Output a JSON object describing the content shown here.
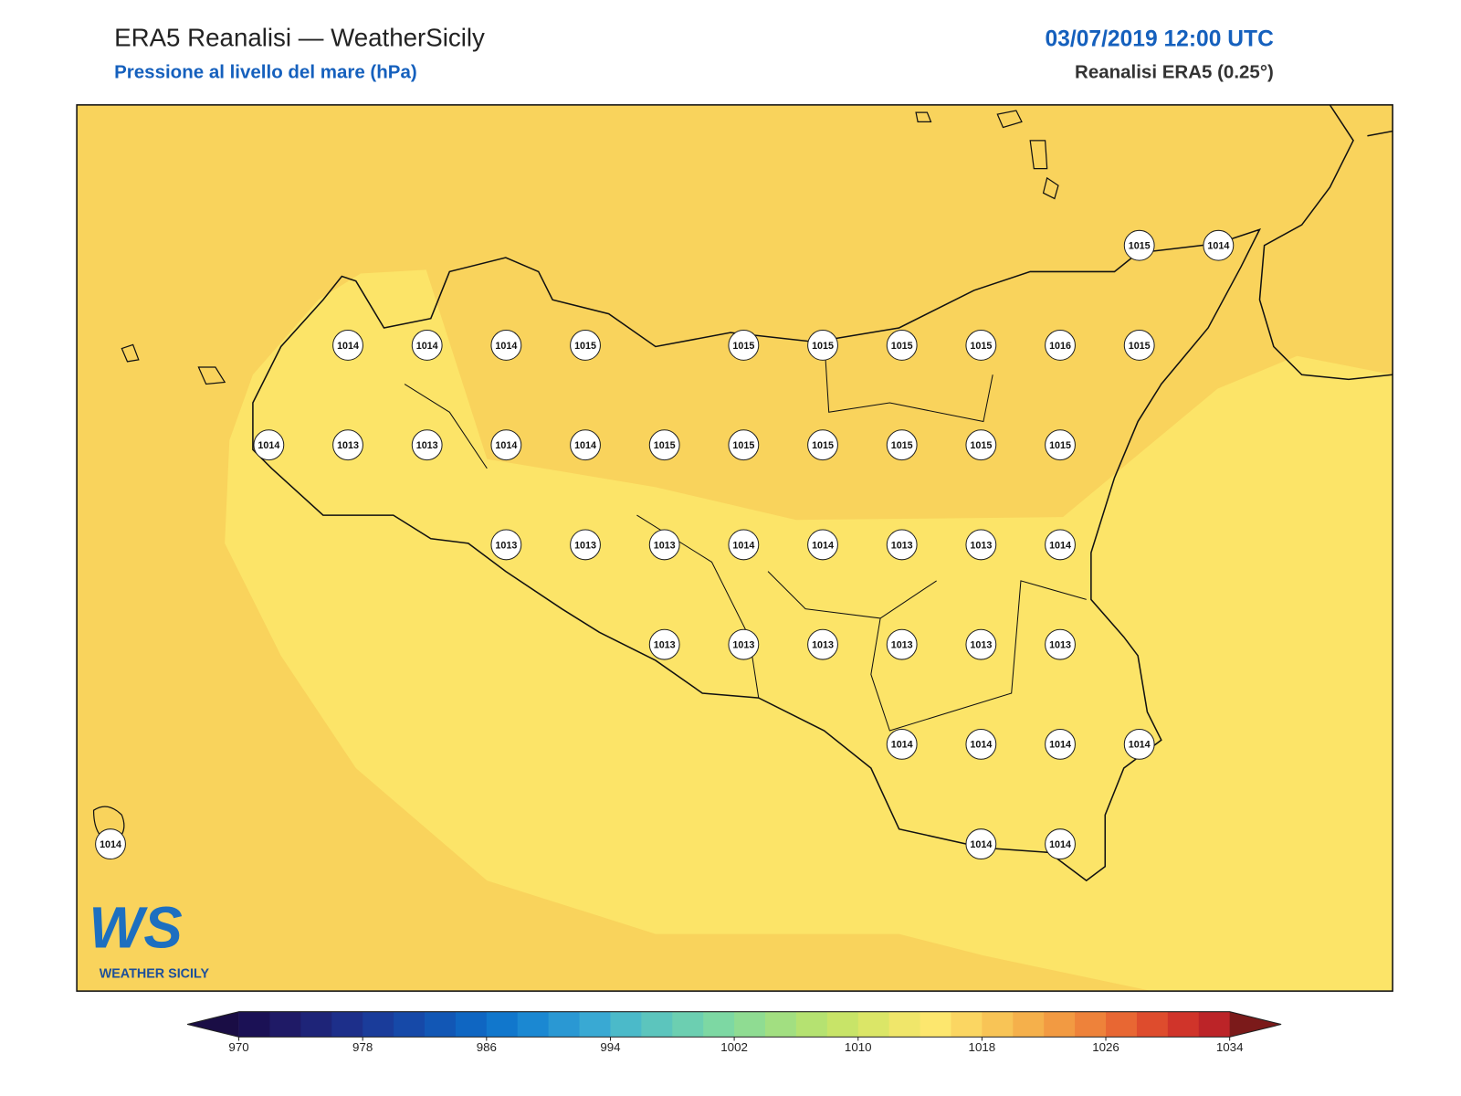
{
  "header": {
    "title": "ERA5 Reanalisi — WeatherSicily",
    "subtitle": "Pressione al livello del mare (hPa)",
    "datetime": "03/07/2019 12:00 UTC",
    "source": "Reanalisi ERA5 (0.25°)"
  },
  "station_grid": [
    [
      null,
      null,
      null,
      null,
      null,
      null,
      null,
      null,
      null,
      null,
      null,
      null,
      null,
      1015,
      1014
    ],
    [
      null,
      null,
      null,
      1014,
      1014,
      1014,
      1015,
      null,
      1015,
      1015,
      1015,
      1015,
      1016,
      1015,
      null
    ],
    [
      null,
      null,
      1014,
      1013,
      1013,
      1014,
      1014,
      1015,
      1015,
      1015,
      1015,
      1015,
      1015,
      null,
      null
    ],
    [
      null,
      null,
      null,
      null,
      null,
      1013,
      1013,
      1013,
      1014,
      1014,
      1013,
      1013,
      1014,
      null,
      null
    ],
    [
      null,
      null,
      null,
      null,
      null,
      null,
      null,
      1013,
      1013,
      1013,
      1013,
      1013,
      1013,
      null,
      null
    ],
    [
      null,
      null,
      null,
      null,
      null,
      null,
      null,
      null,
      null,
      null,
      1014,
      1014,
      1014,
      1014,
      null
    ],
    [
      1014,
      null,
      null,
      null,
      null,
      null,
      null,
      null,
      null,
      null,
      null,
      1014,
      1014,
      null,
      null
    ]
  ],
  "colorbar": {
    "clim": [
      970,
      1034
    ],
    "ticks": [
      970,
      978,
      986,
      994,
      1002,
      1010,
      1018,
      1026,
      1034
    ],
    "colors": [
      "#1b1155",
      "#1f1a66",
      "#1e2478",
      "#1d2f8a",
      "#1a3c9a",
      "#1649a8",
      "#1257b5",
      "#0f66c2",
      "#1177cc",
      "#1b88d2",
      "#2a98d3",
      "#39a9d3",
      "#4bbac9",
      "#5cc5bd",
      "#6ccfb1",
      "#7dd8a3",
      "#8fdc92",
      "#a2df81",
      "#b5e271",
      "#c8e468",
      "#dbe667",
      "#f0e66a",
      "#fde76e",
      "#fbd662",
      "#f8c456",
      "#f5b04b",
      "#f29a42",
      "#ee823a",
      "#e86733",
      "#de4c2d",
      "#d0342a",
      "#bc2428"
    ],
    "under": "#1a0d45",
    "over": "#7b1a1a"
  },
  "logo": {
    "letters": "WS",
    "name": "WEATHER SICILY"
  }
}
